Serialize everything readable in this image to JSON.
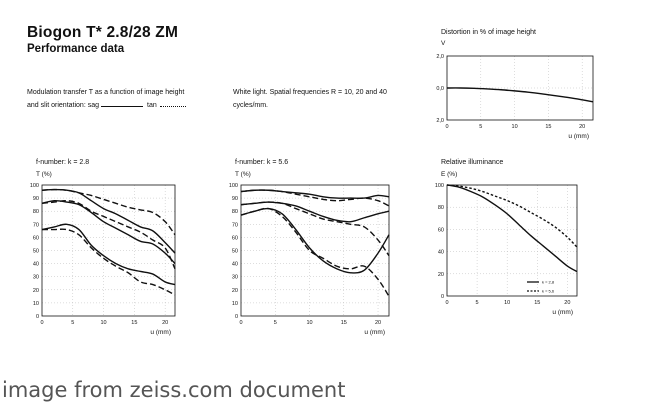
{
  "header": {
    "title": "Biogon T* 2.8/28 ZM",
    "subtitle": "Performance data"
  },
  "description": {
    "mtf_line1": "Modulation transfer T as a function of image height",
    "mtf_line2_a": "and slit orientation: sag",
    "mtf_line2_b": "tan",
    "whitelight_line1": "White light. Spatial frequencies R = 10, 20 and 40",
    "whitelight_line2": "cycles/mm."
  },
  "footer": {
    "caption": "image from zeiss.com document"
  },
  "styles": {
    "line_color": "#111111",
    "axis_color": "#111111",
    "grid_color": "#bbbbbb",
    "caption_color": "#555555"
  },
  "chart_data": [
    {
      "type": "line",
      "title": "f-number: k = 2.8",
      "ylabel": "T (%)",
      "xlabel": "u (mm)",
      "xlim": [
        0,
        21.6
      ],
      "ylim": [
        0,
        100
      ],
      "x_ticks": [
        0,
        5,
        10,
        15,
        20
      ],
      "y_ticks": [
        0,
        10,
        20,
        30,
        40,
        50,
        60,
        70,
        80,
        90,
        100
      ],
      "grid": "dotted",
      "series": [
        {
          "style": "sag",
          "x": [
            0,
            2,
            4,
            6,
            8,
            10,
            12,
            14,
            16,
            18,
            20,
            21.6
          ],
          "y": [
            96,
            96.5,
            96,
            94,
            88,
            82,
            78,
            73,
            68,
            65,
            56,
            48
          ]
        },
        {
          "style": "tan",
          "x": [
            0,
            2,
            4,
            6,
            8,
            10,
            12,
            14,
            16,
            18,
            20,
            21.6
          ],
          "y": [
            96,
            96.5,
            96,
            94,
            92,
            89,
            86,
            83,
            81,
            79,
            72,
            62
          ]
        },
        {
          "style": "sag",
          "x": [
            0,
            2,
            4,
            6,
            8,
            10,
            12,
            14,
            16,
            18,
            20,
            21.6
          ],
          "y": [
            86,
            88,
            87,
            85,
            79,
            72,
            67,
            62,
            57,
            55,
            48,
            40
          ]
        },
        {
          "style": "tan",
          "x": [
            0,
            2,
            4,
            6,
            8,
            10,
            12,
            14,
            16,
            18,
            20,
            21.6
          ],
          "y": [
            86,
            87,
            88,
            86,
            80,
            76,
            72,
            68,
            64,
            58,
            52,
            36
          ]
        },
        {
          "style": "sag",
          "x": [
            0,
            2,
            4,
            6,
            8,
            10,
            12,
            14,
            16,
            18,
            20,
            21.6
          ],
          "y": [
            66,
            68,
            70,
            66,
            54,
            46,
            40,
            36,
            34,
            32,
            26,
            24
          ]
        },
        {
          "style": "tan",
          "x": [
            0,
            2,
            4,
            6,
            8,
            10,
            12,
            14,
            16,
            18,
            20,
            21.6
          ],
          "y": [
            66,
            66,
            66,
            62,
            52,
            44,
            38,
            33,
            26,
            24,
            20,
            16
          ]
        }
      ]
    },
    {
      "type": "line",
      "title": "f-number: k = 5.6",
      "ylabel": "T (%)",
      "xlabel": "u (mm)",
      "xlim": [
        0,
        21.6
      ],
      "ylim": [
        0,
        100
      ],
      "x_ticks": [
        0,
        5,
        10,
        15,
        20
      ],
      "y_ticks": [
        0,
        10,
        20,
        30,
        40,
        50,
        60,
        70,
        80,
        90,
        100
      ],
      "grid": "dotted",
      "series": [
        {
          "style": "sag",
          "x": [
            0,
            2,
            4,
            6,
            8,
            10,
            12,
            14,
            16,
            18,
            20,
            21.6
          ],
          "y": [
            95,
            96,
            96,
            95,
            94,
            93,
            91,
            90,
            90,
            90,
            92,
            91
          ]
        },
        {
          "style": "tan",
          "x": [
            0,
            2,
            4,
            6,
            8,
            10,
            12,
            14,
            16,
            18,
            20,
            21.6
          ],
          "y": [
            95,
            96,
            96,
            95,
            93,
            91,
            89,
            88,
            89,
            90,
            88,
            84
          ]
        },
        {
          "style": "sag",
          "x": [
            0,
            2,
            4,
            6,
            8,
            10,
            12,
            14,
            16,
            18,
            20,
            21.6
          ],
          "y": [
            85,
            86,
            87,
            86,
            84,
            80,
            76,
            73,
            72,
            75,
            78,
            80
          ]
        },
        {
          "style": "tan",
          "x": [
            0,
            2,
            4,
            6,
            8,
            10,
            12,
            14,
            16,
            18,
            20,
            21.6
          ],
          "y": [
            85,
            86,
            87,
            86,
            82,
            78,
            74,
            72,
            70,
            68,
            58,
            46
          ]
        },
        {
          "style": "sag",
          "x": [
            0,
            2,
            4,
            6,
            8,
            10,
            12,
            14,
            16,
            18,
            20,
            21.6
          ],
          "y": [
            77,
            80,
            82,
            78,
            66,
            52,
            42,
            36,
            33,
            35,
            48,
            62
          ]
        },
        {
          "style": "tan",
          "x": [
            0,
            2,
            4,
            6,
            8,
            10,
            12,
            14,
            16,
            18,
            20,
            21.6
          ],
          "y": [
            77,
            80,
            82,
            76,
            64,
            50,
            44,
            38,
            36,
            38,
            28,
            15
          ]
        }
      ]
    },
    {
      "type": "line",
      "title": "Distortion in % of image height",
      "ylabel": "V",
      "xlabel": "u (mm)",
      "xlim": [
        0,
        21.6
      ],
      "ylim": [
        -2,
        2
      ],
      "x_ticks": [
        0,
        5,
        10,
        15,
        20
      ],
      "y_ticks": [
        -2,
        0,
        2
      ],
      "y_tick_labels": [
        "2,0",
        "0,0",
        "2,0"
      ],
      "grid": "dotted",
      "series": [
        {
          "style": "solid",
          "x": [
            0,
            2,
            4,
            6,
            8,
            10,
            12,
            14,
            16,
            18,
            20,
            21.6
          ],
          "y": [
            0,
            0,
            -0.02,
            -0.06,
            -0.11,
            -0.18,
            -0.26,
            -0.36,
            -0.48,
            -0.6,
            -0.74,
            -0.86
          ]
        }
      ]
    },
    {
      "type": "line",
      "title": "Relative illuminance",
      "ylabel": "E (%)",
      "xlabel": "u (mm)",
      "xlim": [
        0,
        21.6
      ],
      "ylim": [
        0,
        100
      ],
      "x_ticks": [
        0,
        5,
        10,
        15,
        20
      ],
      "y_ticks": [
        0,
        20,
        40,
        60,
        80,
        100
      ],
      "grid": "dotted",
      "legend": {
        "position": "bottom-right",
        "entries": [
          {
            "label": "k = 2,8",
            "style": "solid"
          },
          {
            "label": "k = 5,6",
            "style": "dashed"
          }
        ]
      },
      "series": [
        {
          "name": "k = 2,8",
          "style": "solid",
          "x": [
            0,
            2,
            4,
            6,
            8,
            10,
            12,
            14,
            16,
            18,
            20,
            21.6
          ],
          "y": [
            100,
            98,
            94,
            89,
            82,
            74,
            64,
            54,
            45,
            36,
            27,
            22
          ]
        },
        {
          "name": "k = 5,6",
          "style": "dashed",
          "x": [
            0,
            2,
            4,
            6,
            8,
            10,
            12,
            14,
            16,
            18,
            20,
            21.6
          ],
          "y": [
            100,
            99,
            97,
            94,
            90,
            86,
            81,
            75,
            69,
            62,
            53,
            44
          ]
        }
      ]
    }
  ]
}
